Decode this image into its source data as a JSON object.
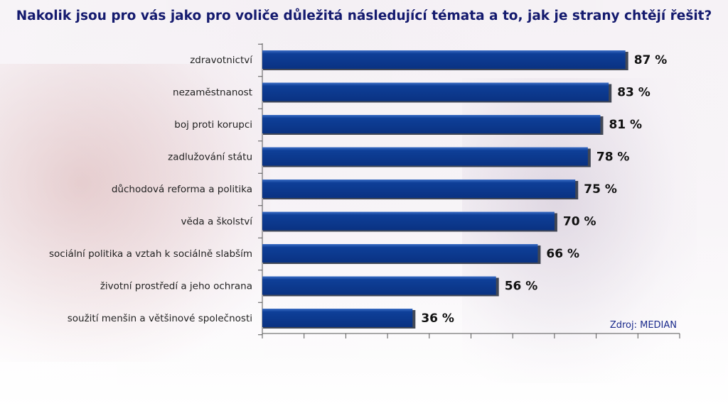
{
  "title": "Nakolik jsou pro vás jako pro voliče důležitá následující témata a to, jak je strany chtějí řešit?",
  "source": "Zdroj: MEDIAN",
  "colors": {
    "bar": "#0e3f98",
    "bar_top": "#3a6cc4",
    "bar_shadow": "#222a3a",
    "title": "#141a6e"
  },
  "chart_data": {
    "type": "bar",
    "orientation": "horizontal",
    "categories": [
      "zdravotnictví",
      "nezaměstnanost",
      "boj proti korupci",
      "zadlužování státu",
      "důchodová reforma a politika",
      "věda a školství",
      "sociální politika a vztah k sociálně slabším",
      "životní prostředí a jeho ochrana",
      "soužití menšin a většinové společnosti"
    ],
    "values": [
      87,
      83,
      81,
      78,
      75,
      70,
      66,
      56,
      36
    ],
    "data_labels": [
      "87 %",
      "83 %",
      "81 %",
      "78 %",
      "75 %",
      "70 %",
      "66 %",
      "56 %",
      "36 %"
    ],
    "xlim": [
      0,
      100
    ],
    "grid": false
  }
}
